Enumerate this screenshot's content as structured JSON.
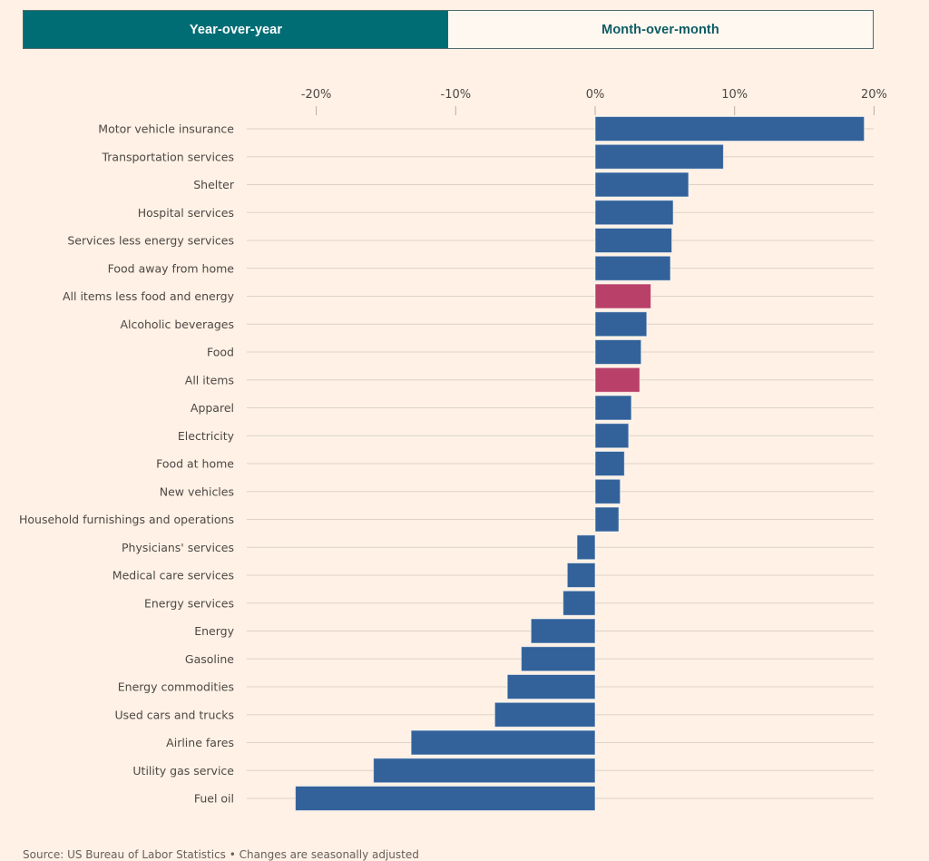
{
  "toggle": {
    "options": [
      {
        "label": "Year-over-year",
        "active": true
      },
      {
        "label": "Month-over-month",
        "active": false
      }
    ]
  },
  "colors": {
    "background": "#fff1e5",
    "bar_default": "#33629a",
    "bar_highlight": "#b94169",
    "toggle_active": "#006d75",
    "gridline": "#dcd2c8"
  },
  "chart_data": {
    "type": "bar",
    "orientation": "horizontal",
    "title": "",
    "xlabel": "",
    "ylabel": "",
    "unit": "%",
    "xlim": [
      -20,
      20
    ],
    "x_ticks": [
      -20,
      -10,
      0,
      10,
      20
    ],
    "x_tick_labels": [
      "-20%",
      "-10%",
      "0%",
      "10%",
      "20%"
    ],
    "x_axis_position": "top",
    "grid": true,
    "categories": [
      "Motor vehicle insurance",
      "Transportation services",
      "Shelter",
      "Hospital services",
      "Services less energy services",
      "Food away from home",
      "All items less food and energy",
      "Alcoholic beverages",
      "Food",
      "All items",
      "Apparel",
      "Electricity",
      "Food at home",
      "New vehicles",
      "Household furnishings and operations",
      "Physicians' services",
      "Medical care services",
      "Energy services",
      "Energy",
      "Gasoline",
      "Energy commodities",
      "Used cars and trucks",
      "Airline fares",
      "Utility gas service",
      "Fuel oil"
    ],
    "values": [
      19.3,
      9.2,
      6.7,
      5.6,
      5.5,
      5.4,
      4.0,
      3.7,
      3.3,
      3.2,
      2.6,
      2.4,
      2.1,
      1.8,
      1.7,
      -1.3,
      -2.0,
      -2.3,
      -4.6,
      -5.3,
      -6.3,
      -7.2,
      -13.2,
      -15.9,
      -21.5
    ],
    "highlighted": [
      "All items less food and energy",
      "All items"
    ],
    "series": [
      {
        "name": "Year-over-year change",
        "values": [
          19.3,
          9.2,
          6.7,
          5.6,
          5.5,
          5.4,
          4.0,
          3.7,
          3.3,
          3.2,
          2.6,
          2.4,
          2.1,
          1.8,
          1.7,
          -1.3,
          -2.0,
          -2.3,
          -4.6,
          -5.3,
          -6.3,
          -7.2,
          -13.2,
          -15.9,
          -21.5
        ]
      }
    ],
    "source": "Source: US Bureau of Labor Statistics • Changes are seasonally adjusted"
  }
}
